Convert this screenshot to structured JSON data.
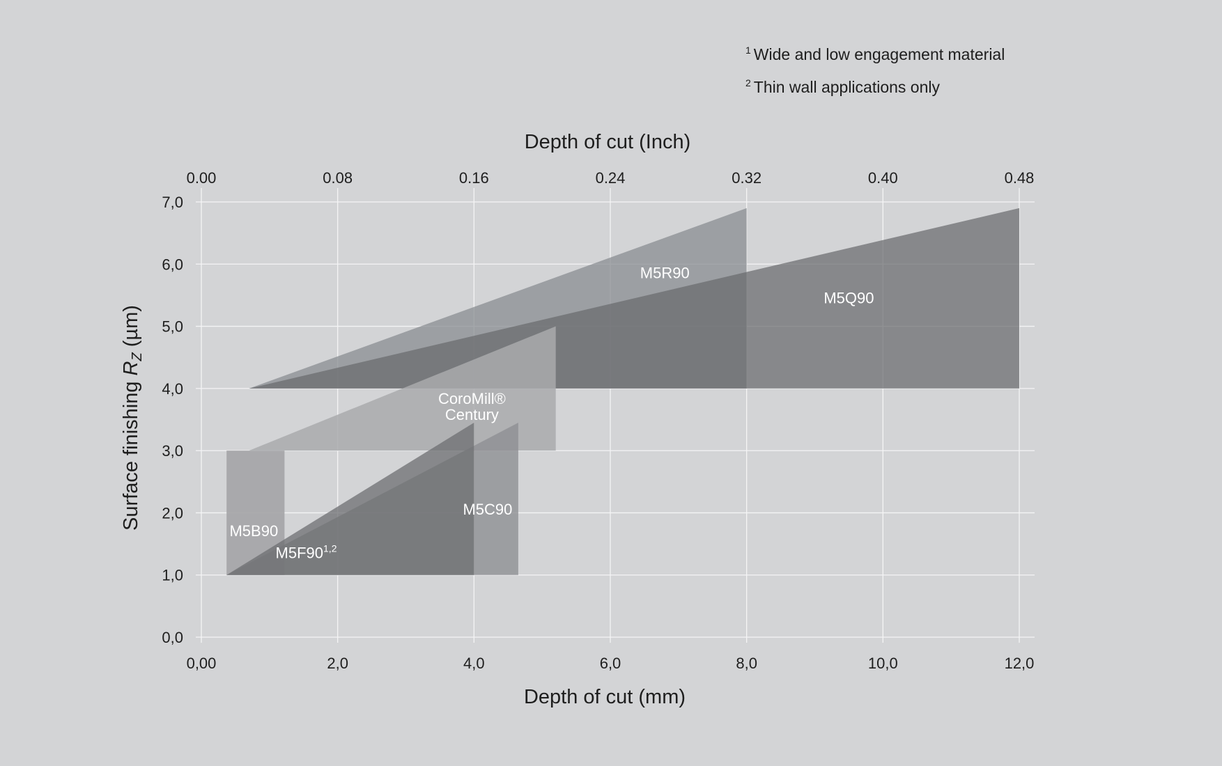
{
  "footnotes": [
    {
      "mark": "1",
      "text": "Wide and low engagement material"
    },
    {
      "mark": "2",
      "text": "Thin wall applications only"
    }
  ],
  "chart_data": {
    "type": "area",
    "xlabel": "Depth of cut (mm)",
    "x2label": "Depth of cut (Inch)",
    "ylabel_prefix": "Surface finishing ",
    "ylabel_symbol": "R",
    "ylabel_subscript": "Z",
    "ylabel_suffix": " (µm)",
    "xlim": [
      0,
      12.0
    ],
    "ylim": [
      0,
      7.0
    ],
    "x_ticks": [
      "0,00",
      "2,0",
      "4,0",
      "6,0",
      "8,0",
      "10,0",
      "12,0"
    ],
    "x_tick_values": [
      0,
      2,
      4,
      6,
      8,
      10,
      12
    ],
    "x2_ticks": [
      "0.00",
      "0.08",
      "0.16",
      "0.24",
      "0.32",
      "0.40",
      "0.48"
    ],
    "y_ticks": [
      "0,0",
      "1,0",
      "2,0",
      "3,0",
      "4,0",
      "5,0",
      "6,0",
      "7,0"
    ],
    "y_tick_values": [
      0,
      1,
      2,
      3,
      4,
      5,
      6,
      7
    ],
    "grid": true,
    "series": [
      {
        "name": "M5R90",
        "color": "#8a8d91",
        "opacity": 0.75,
        "polygon": [
          [
            0.7,
            4.0
          ],
          [
            8.0,
            6.9
          ],
          [
            8.0,
            4.0
          ]
        ],
        "label_at": [
          6.8,
          5.85
        ]
      },
      {
        "name": "M5Q90",
        "color": "#6a6b6d",
        "opacity": 0.72,
        "polygon": [
          [
            0.7,
            4.0
          ],
          [
            12.0,
            6.9
          ],
          [
            12.0,
            4.0
          ]
        ],
        "label_at": [
          9.5,
          5.45
        ]
      },
      {
        "name": "CoroMill® Century",
        "name_lines": [
          "CoroMill®",
          "Century"
        ],
        "color": "#a9aaad",
        "opacity": 0.85,
        "polygon": [
          [
            0.7,
            3.0
          ],
          [
            5.2,
            5.0
          ],
          [
            5.2,
            3.0
          ]
        ],
        "label_at": [
          3.97,
          3.7
        ]
      },
      {
        "name": "M5B90",
        "color": "#a6a7aa",
        "opacity": 0.95,
        "polygon": [
          [
            0.37,
            1.0
          ],
          [
            0.37,
            3.0
          ],
          [
            1.22,
            3.0
          ],
          [
            1.22,
            1.0
          ]
        ],
        "label_at": [
          0.77,
          1.7
        ]
      },
      {
        "name": "M5C90",
        "color": "#8e9093",
        "opacity": 0.8,
        "polygon": [
          [
            0.37,
            1.0
          ],
          [
            4.65,
            3.45
          ],
          [
            4.65,
            1.0
          ]
        ],
        "label_at": [
          4.2,
          2.05
        ]
      },
      {
        "name": "M5F90",
        "superscript": "1,2",
        "color": "#6e6f71",
        "opacity": 0.75,
        "polygon": [
          [
            0.37,
            1.0
          ],
          [
            4.0,
            3.45
          ],
          [
            4.0,
            1.0
          ]
        ],
        "label_at": [
          1.6,
          1.35
        ]
      }
    ]
  }
}
